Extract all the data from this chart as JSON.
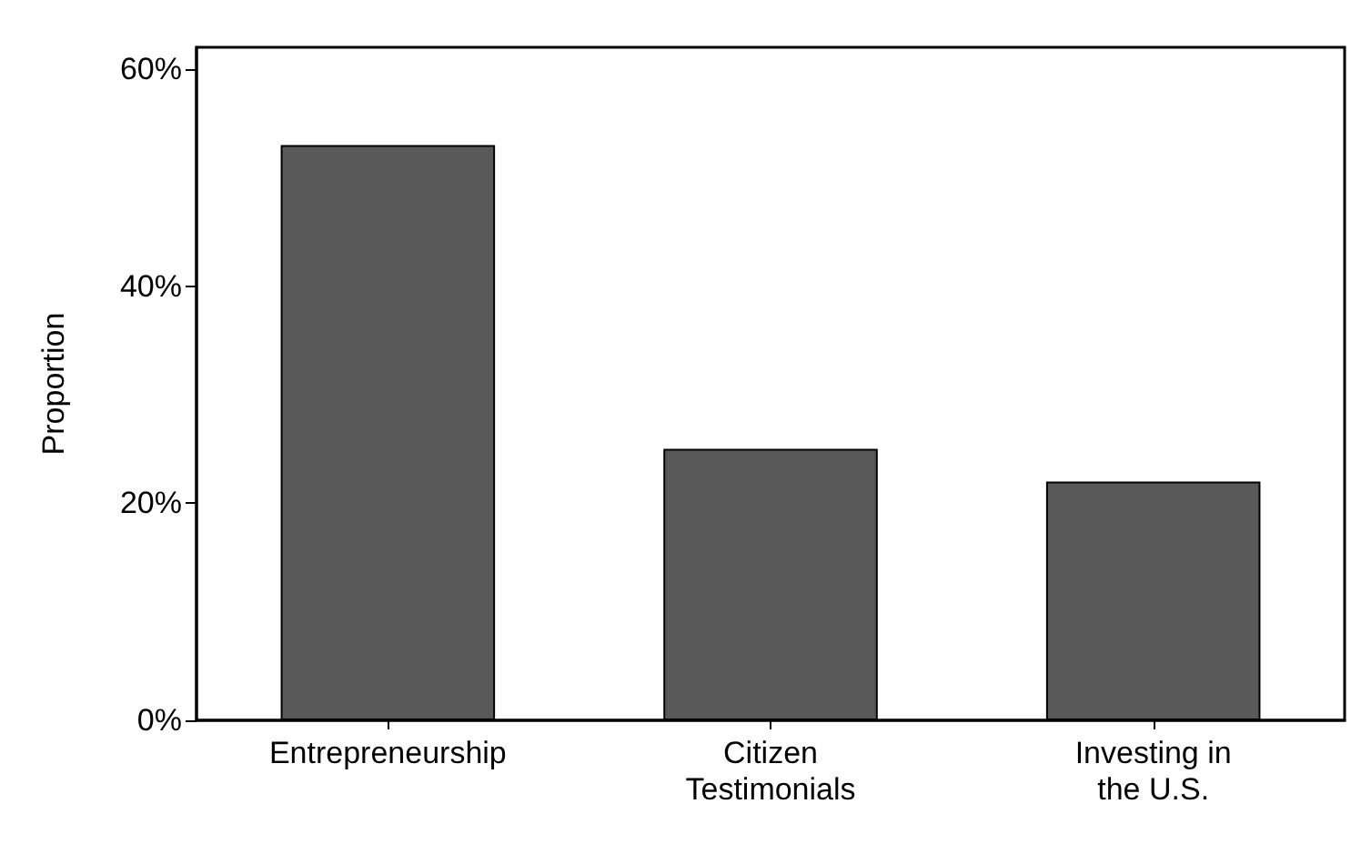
{
  "chart_data": {
    "type": "bar",
    "ylabel": "Proportion",
    "categories": [
      "Entrepreneurship",
      "Citizen\nTestimonials",
      "Investing in\nthe U.S."
    ],
    "values": [
      53,
      25,
      22
    ],
    "color": "#595959",
    "ylim": [
      0,
      62
    ],
    "yticks": [
      {
        "value": 0,
        "label": "0%"
      },
      {
        "value": 20,
        "label": "20%"
      },
      {
        "value": 40,
        "label": "40%"
      },
      {
        "value": 60,
        "label": "60%"
      }
    ],
    "grid": false
  }
}
